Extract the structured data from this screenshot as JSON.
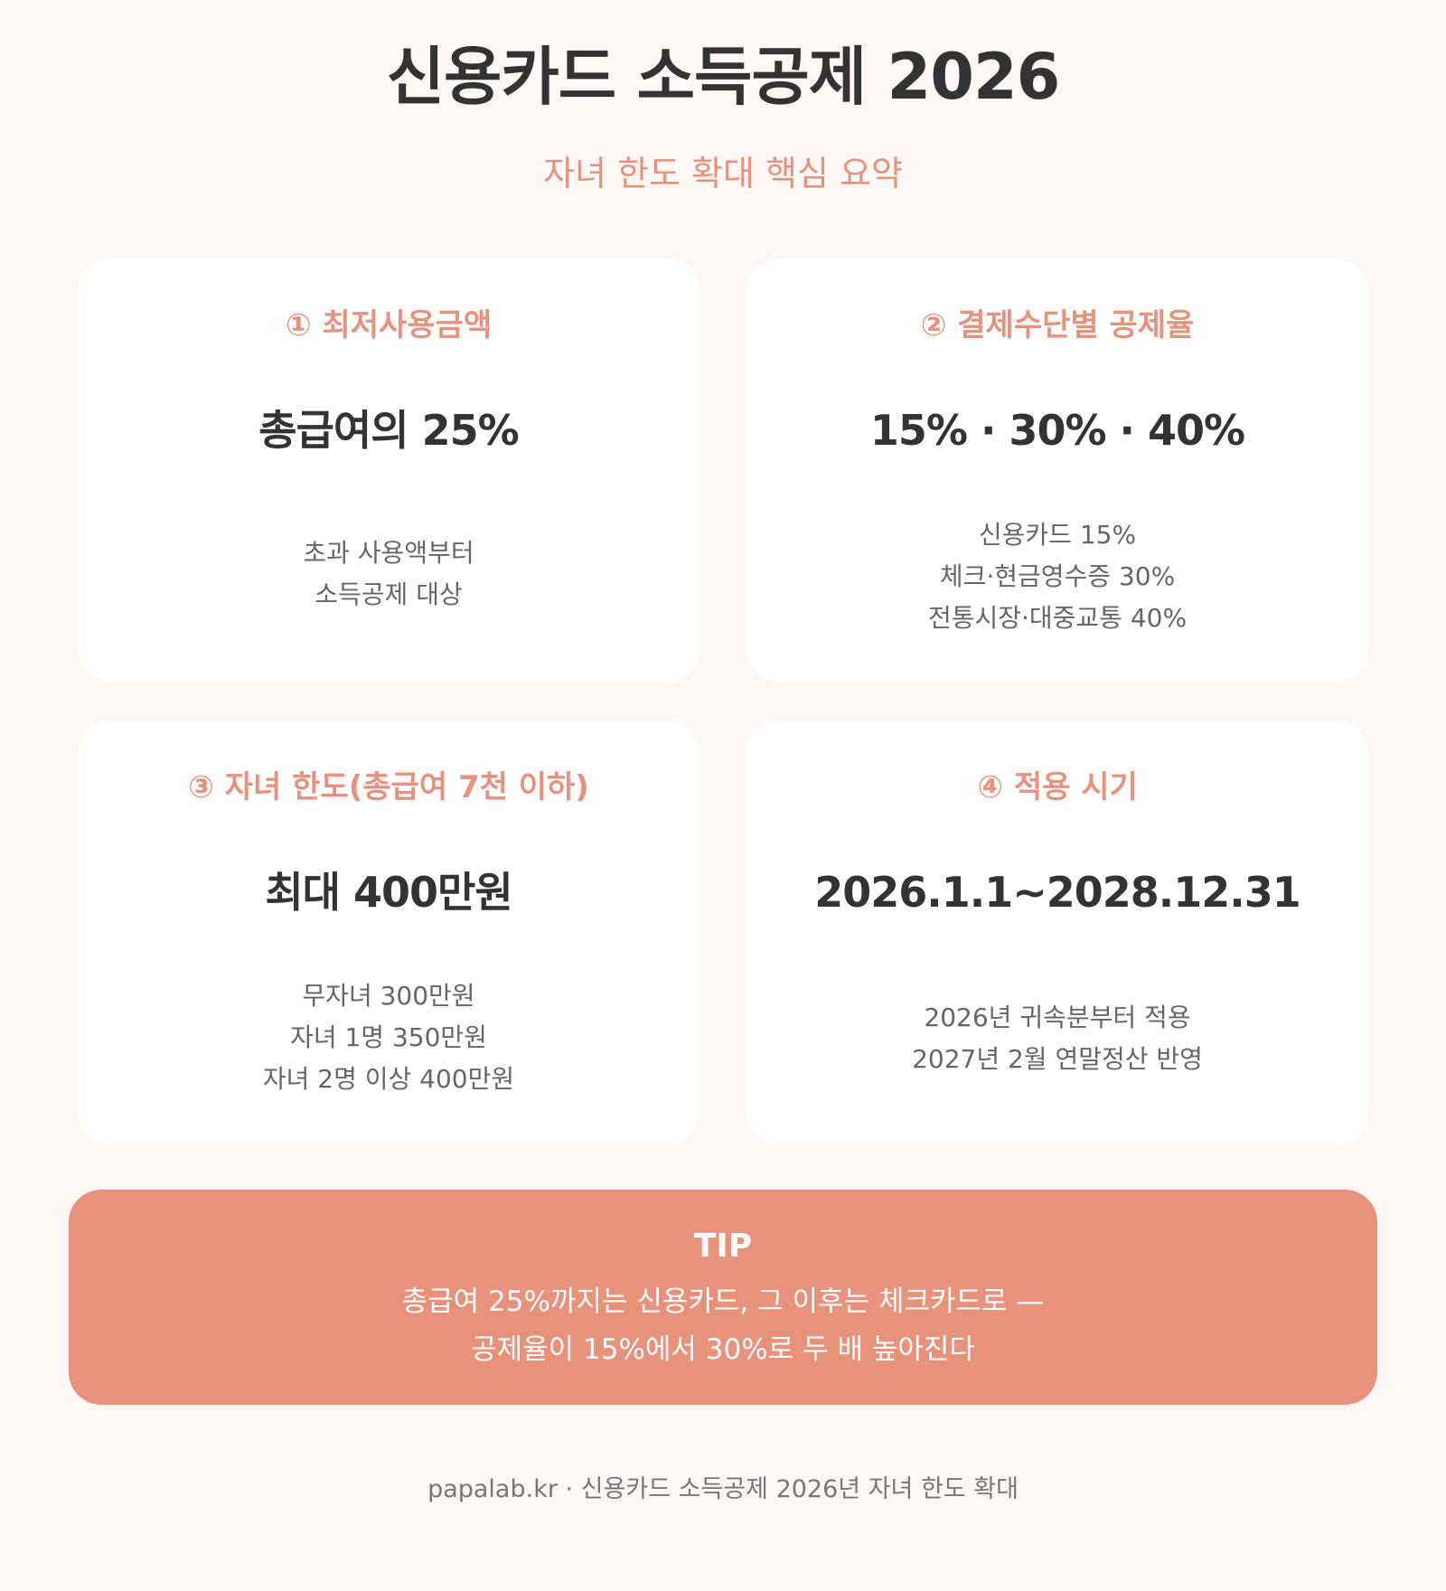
{
  "header": {
    "title": "신용카드 소득공제 2026",
    "subtitle": "자녀 한도 확대 핵심 요약"
  },
  "cards": [
    {
      "label": "① 최저사용금액",
      "value": "총급여의 25%",
      "desc": [
        "초과 사용액부터",
        "소득공제 대상"
      ]
    },
    {
      "label": "② 결제수단별 공제율",
      "value": "15% · 30% · 40%",
      "desc": [
        "신용카드 15%",
        "체크·현금영수증 30%",
        "전통시장·대중교통 40%"
      ]
    },
    {
      "label": "③ 자녀 한도(총급여 7천 이하)",
      "value": "최대 400만원",
      "desc": [
        "무자녀 300만원",
        "자녀 1명 350만원",
        "자녀 2명 이상 400만원"
      ]
    },
    {
      "label": "④ 적용 시기",
      "value": "2026.1.1~2028.12.31",
      "desc": [
        "2026년 귀속분부터 적용",
        "2027년 2월 연말정산 반영"
      ]
    }
  ],
  "tip": {
    "title": "TIP",
    "lines": [
      "총급여 25%까지는 신용카드, 그 이후는 체크카드로 —",
      "공제율이 15%에서 30%로 두 배 높아진다"
    ]
  },
  "footer": {
    "text": "papalab.kr · 신용카드 소득공제 2026년 자녀 한도 확대"
  },
  "colors": {
    "background": "#fdf8f5",
    "accent": "#e8927c",
    "card": "#ffffff",
    "text_primary": "#333333",
    "text_secondary": "#666666"
  }
}
